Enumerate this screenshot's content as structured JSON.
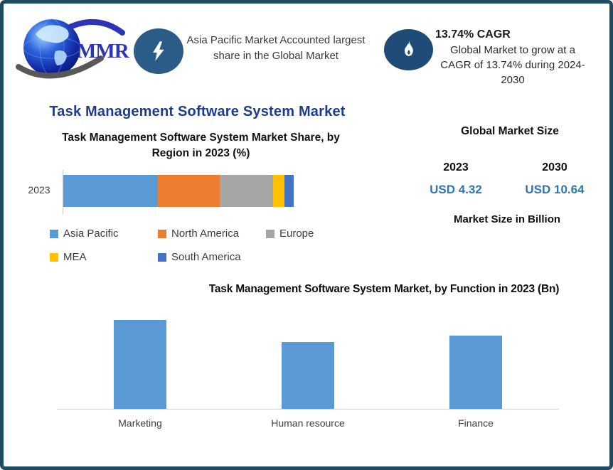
{
  "frame": {
    "border_color": "#1F4A5F",
    "background": "#FFFFFF"
  },
  "header": {
    "logo": {
      "text": "MMR",
      "icon": "globe-icon",
      "text_color": "#2B35B5"
    },
    "highlight_left": {
      "icon": "lightning-icon",
      "icon_bg": "#2B5C88",
      "text": "Asia Pacific Market Accounted largest share in the Global Market"
    },
    "highlight_right": {
      "icon": "flame-icon",
      "icon_bg": "#1E4C77",
      "headline": "13.74% CAGR",
      "text": "Global Market to grow at a CAGR of 13.74% during 2024-2030"
    }
  },
  "main_title": {
    "text": "Task Management Software System Market",
    "color": "#1C3B8E"
  },
  "market_size_panel": {
    "title": "Global Market Size",
    "columns": [
      {
        "year": "2023",
        "value": "USD 4.32"
      },
      {
        "year": "2030",
        "value": "USD 10.64"
      }
    ],
    "footnote": "Market Size in Billion",
    "value_color": "#2E75B6"
  },
  "chart_data": [
    {
      "type": "bar",
      "orientation": "horizontal",
      "stacked": true,
      "title": "Task Management Software System Market Share, by Region in 2023 (%)",
      "categories": [
        "2023"
      ],
      "series": [
        {
          "name": "Asia Pacific",
          "color": "#5B9BD5",
          "values": [
            41
          ]
        },
        {
          "name": "North America",
          "color": "#ED7D31",
          "values": [
            27
          ]
        },
        {
          "name": "Europe",
          "color": "#A5A5A5",
          "values": [
            23
          ]
        },
        {
          "name": "MEA",
          "color": "#FFC000",
          "values": [
            5
          ]
        },
        {
          "name": "South America",
          "color": "#4472C4",
          "values": [
            4
          ]
        }
      ],
      "xlabel": "",
      "ylabel": "",
      "xlim": [
        0,
        100
      ],
      "legend_position": "bottom",
      "grid": false
    },
    {
      "type": "bar",
      "title": "Task Management Software System Market, by Function in 2023 (Bn)",
      "categories": [
        "Marketing",
        "Human resource",
        "Finance"
      ],
      "values": [
        1.7,
        1.28,
        1.4
      ],
      "bar_color": "#5B9BD5",
      "xlabel": "",
      "ylabel": "",
      "ylim": [
        0,
        2
      ],
      "grid": false,
      "legend_position": "none"
    }
  ]
}
